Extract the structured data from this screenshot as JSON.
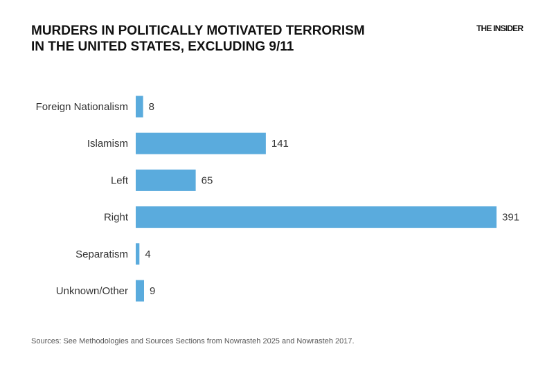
{
  "header": {
    "title_line1": "MURDERS IN POLITICALLY MOTIVATED TERRORISM",
    "title_line2": "IN THE UNITED STATES, EXCLUDING 9/11",
    "brand": "THE INSIDER"
  },
  "footer": {
    "source": "Sources: See Methodologies and Sources Sections from Nowrasteh 2025 and Nowrasteh 2017."
  },
  "chart_data": {
    "type": "bar",
    "orientation": "horizontal",
    "title": "MURDERS IN POLITICALLY MOTIVATED TERRORISM IN THE UNITED STATES, EXCLUDING 9/11",
    "categories": [
      "Foreign Nationalism",
      "Islamism",
      "Left",
      "Right",
      "Separatism",
      "Unknown/Other"
    ],
    "values": [
      8,
      141,
      65,
      391,
      4,
      9
    ],
    "xlabel": "",
    "ylabel": "",
    "grid": false,
    "data_labels": true,
    "color": "#5AABDD"
  }
}
